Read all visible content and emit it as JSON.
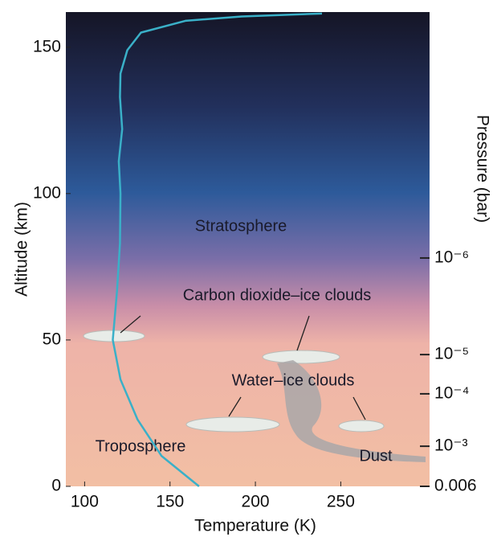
{
  "chart_data": {
    "type": "line",
    "x_label": "Temperature (K)",
    "y_label": "Altitude (km)",
    "y2_label": "Pressure (bar)",
    "xlim": [
      89,
      302
    ],
    "ylim": [
      0,
      162
    ],
    "xticks": [
      100,
      150,
      200,
      250
    ],
    "yticks": [
      0,
      50,
      100,
      150
    ],
    "series": [
      {
        "color": "#3ab0c8",
        "x": [
          167,
          145,
          131,
          121,
          116.5,
          119,
          120.7,
          121,
          120,
          122,
          120.7,
          121,
          125,
          133,
          159,
          192,
          239
        ],
        "values": [
          0,
          10.4,
          22.8,
          36.5,
          50,
          67,
          83,
          100,
          111,
          122,
          133,
          141,
          149,
          155,
          159,
          160.5,
          161.5
        ]
      }
    ],
    "pressure_levels": [
      {
        "label": "10⁻⁶",
        "altitude": 78
      },
      {
        "label": "10⁻⁵",
        "altitude": 45
      },
      {
        "label": "10⁻⁴",
        "altitude": 31.6
      },
      {
        "label": "10⁻³",
        "altitude": 13.7
      },
      {
        "label": "0.006",
        "altitude": 0
      }
    ],
    "annotations": [
      "Stratosphere",
      "Carbon dioxide–ice clouds",
      "Water–ice clouds",
      "Troposphere",
      "Dust"
    ]
  }
}
